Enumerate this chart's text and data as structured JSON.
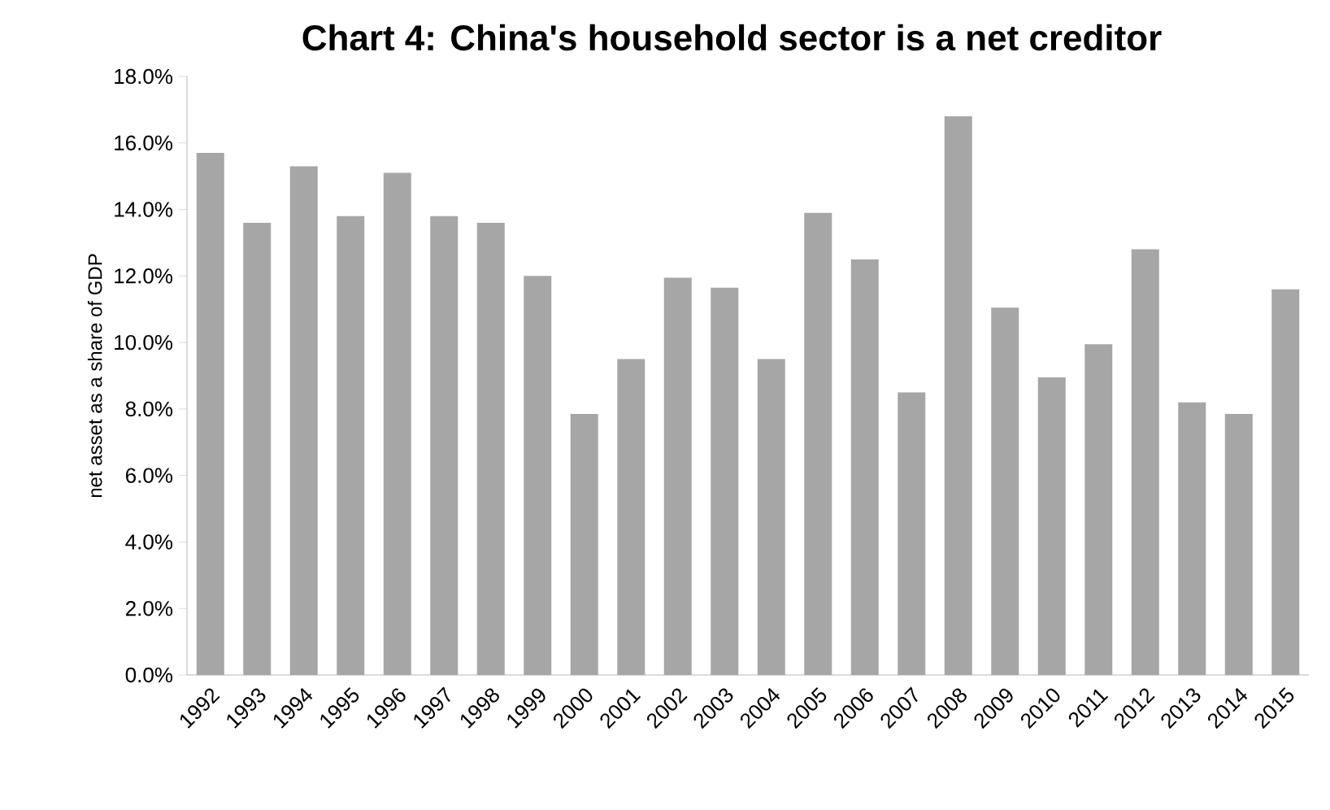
{
  "chart_data": {
    "type": "bar",
    "title": "Chart 4: China's household sector is a net creditor",
    "ylabel": "net asset as a share of GDP",
    "categories": [
      "1992",
      "1993",
      "1994",
      "1995",
      "1996",
      "1997",
      "1998",
      "1999",
      "2000",
      "2001",
      "2002",
      "2003",
      "2004",
      "2005",
      "2006",
      "2007",
      "2008",
      "2009",
      "2010",
      "2011",
      "2012",
      "2013",
      "2014",
      "2015"
    ],
    "values": [
      15.7,
      13.6,
      15.3,
      13.8,
      15.1,
      13.8,
      13.6,
      12.0,
      7.85,
      9.5,
      11.95,
      11.65,
      9.5,
      13.9,
      12.5,
      8.5,
      16.8,
      11.05,
      8.95,
      9.95,
      12.8,
      8.2,
      7.85,
      11.6
    ],
    "color": "#a6a6a6",
    "ylim": [
      0,
      18
    ],
    "yticks": [
      {
        "value": 0,
        "label": "0.0%"
      },
      {
        "value": 2,
        "label": "2.0%"
      },
      {
        "value": 4,
        "label": "4.0%"
      },
      {
        "value": 6,
        "label": "6.0%"
      },
      {
        "value": 8,
        "label": "8.0%"
      },
      {
        "value": 10,
        "label": "10.0%"
      },
      {
        "value": 12,
        "label": "12.0%"
      },
      {
        "value": 14,
        "label": "14.0%"
      },
      {
        "value": 16,
        "label": "16.0%"
      },
      {
        "value": 18,
        "label": "18.0%"
      }
    ],
    "grid": false
  }
}
